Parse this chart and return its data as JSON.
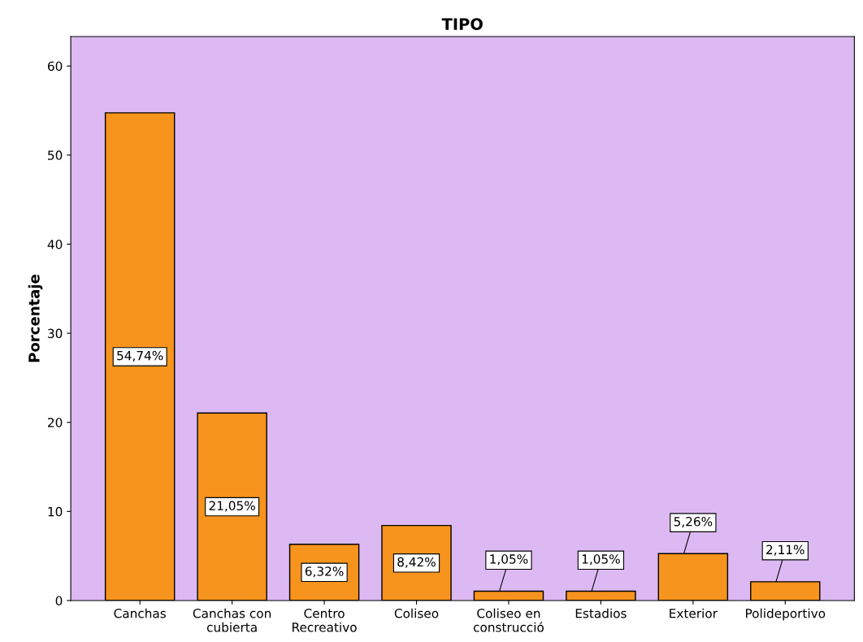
{
  "chart_data": {
    "type": "bar",
    "title": "TIPO",
    "ylabel": "Porcentaje",
    "categories": [
      "Canchas",
      "Canchas con\ncubierta",
      "Centro\nRecreativo",
      "Coliseo",
      "Coliseo en\nconstrucció",
      "Estadios",
      "Exterior",
      "Polideportivo"
    ],
    "values": [
      54.74,
      21.05,
      6.32,
      8.42,
      1.05,
      1.05,
      5.26,
      2.11
    ],
    "value_labels": [
      "54,74%",
      "21,05%",
      "6,32%",
      "8,42%",
      "1,05%",
      "1,05%",
      "5,26%",
      "2,11%"
    ],
    "color": "#f7941d",
    "ylim": [
      0,
      63.3
    ],
    "yticks": [
      0,
      10,
      20,
      30,
      40,
      50,
      60
    ],
    "grid": false,
    "legend": false
  }
}
